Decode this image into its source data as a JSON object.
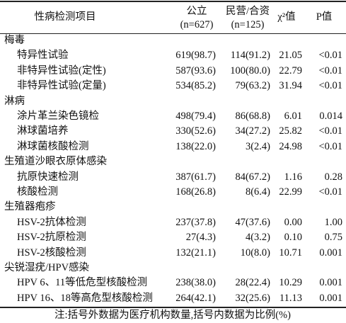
{
  "table": {
    "columns": [
      {
        "label": "性病检测项目"
      },
      {
        "label": "公立",
        "sub": "(n=627)"
      },
      {
        "label": "民营/合资",
        "sub": "(n=125)"
      },
      {
        "label": "χ²值"
      },
      {
        "label": "P值"
      }
    ],
    "rows": [
      {
        "label": "梅毒"
      },
      {
        "label": "特异性试验",
        "cells": [
          "619(98.7)",
          "114(91.2)",
          "21.05",
          "<0.01"
        ]
      },
      {
        "label": "非特异性试验(定性)",
        "cells": [
          "587(93.6)",
          "100(80.0)",
          "22.79",
          "<0.01"
        ]
      },
      {
        "label": "非特异性试验(定量)",
        "cells": [
          "534(85.2)",
          "79(63.2)",
          "31.94",
          "<0.01"
        ]
      },
      {
        "label": "淋病"
      },
      {
        "label": "涂片革兰染色镜检",
        "cells": [
          "498(79.4)",
          "86(68.8)",
          "6.01",
          "0.014"
        ]
      },
      {
        "label": "淋球菌培养",
        "cells": [
          "330(52.6)",
          "34(27.2)",
          "25.82",
          "<0.01"
        ]
      },
      {
        "label": "淋球菌核酸检测",
        "cells": [
          "138(22.0)",
          "3(2.4)",
          "24.98",
          "<0.01"
        ]
      },
      {
        "label": "生殖道沙眼衣原体感染"
      },
      {
        "label": "抗原快速检测",
        "cells": [
          "387(61.7)",
          "84(67.2)",
          "1.16",
          "0.28"
        ]
      },
      {
        "label": "核酸检测",
        "cells": [
          "168(26.8)",
          "8(6.4)",
          "22.99",
          "<0.01"
        ]
      },
      {
        "label": "生殖器疱疹"
      },
      {
        "label": "HSV-2抗体检测",
        "cells": [
          "237(37.8)",
          "47(37.6)",
          "0.00",
          "1.00"
        ]
      },
      {
        "label": "HSV-2抗原检测",
        "cells": [
          "27(4.3)",
          "4(3.2)",
          "0.10",
          "0.75"
        ]
      },
      {
        "label": "HSV-2核酸检测",
        "cells": [
          "132(21.1)",
          "10(8.0)",
          "10.71",
          "0.001"
        ]
      },
      {
        "label": "尖锐湿疣/HPV感染"
      },
      {
        "label": "HPV 6、11等低危型核酸检测",
        "cells": [
          "238(38.0)",
          "28(22.4)",
          "10.29",
          "0.001"
        ]
      },
      {
        "label": "HPV 16、18等高危型核酸检测",
        "cells": [
          "264(42.1)",
          "32(25.6)",
          "11.13",
          "0.001"
        ]
      }
    ],
    "note": "注:括号外数据为医疗机构数量,括号内数据为比例(%)"
  }
}
